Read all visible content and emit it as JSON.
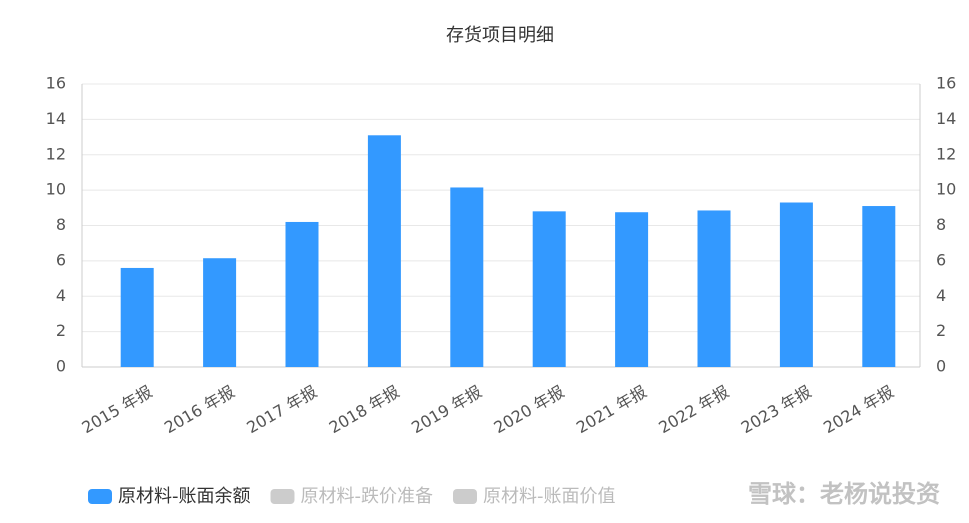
{
  "chart_data": {
    "type": "bar",
    "title": "存货项目明细",
    "categories": [
      "2015 年报",
      "2016 年报",
      "2017 年报",
      "2018 年报",
      "2019 年报",
      "2020 年报",
      "2021 年报",
      "2022 年报",
      "2023 年报",
      "2024 年报"
    ],
    "series": [
      {
        "name": "原材料-账面余额",
        "color": "#3399ff",
        "values": [
          5.6,
          6.15,
          8.2,
          13.1,
          10.15,
          8.8,
          8.75,
          8.85,
          9.3,
          9.1
        ]
      }
    ],
    "inactive_legend": [
      {
        "name": "原材料-跌价准备",
        "color": "#cccccc"
      },
      {
        "name": "原材料-账面价值",
        "color": "#cccccc"
      }
    ],
    "ylim": [
      0,
      16
    ],
    "yticks": [
      0,
      2,
      4,
      6,
      8,
      10,
      12,
      14,
      16
    ],
    "y2lim": [
      0,
      16
    ],
    "y2ticks": [
      0,
      2,
      4,
      6,
      8,
      10,
      12,
      14,
      16
    ],
    "grid": true,
    "legend": "bottom",
    "watermark": "雪球：老杨说投资"
  }
}
